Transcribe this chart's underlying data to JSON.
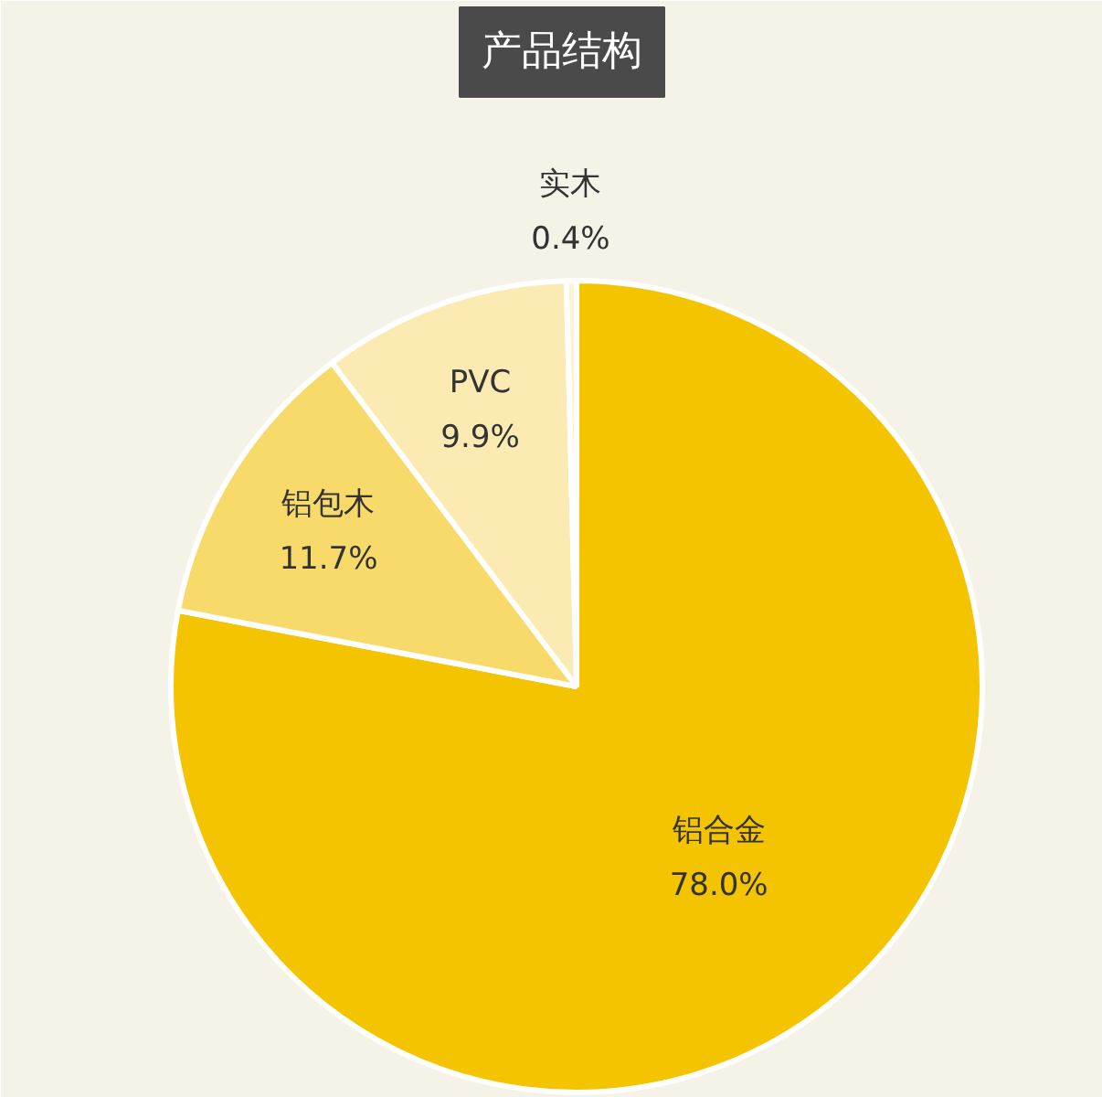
{
  "chart_data": {
    "type": "pie",
    "title": "产品结构",
    "categories": [
      "铝合金",
      "铝包木",
      "PVC",
      "实木"
    ],
    "values": [
      78.0,
      11.7,
      9.9,
      0.4
    ],
    "value_labels": [
      "78.0%",
      "11.7%",
      "9.9%",
      "0.4%"
    ],
    "colors": [
      "#f5c400",
      "#f8da6b",
      "#fbebb3",
      "#fdf3d2"
    ]
  }
}
